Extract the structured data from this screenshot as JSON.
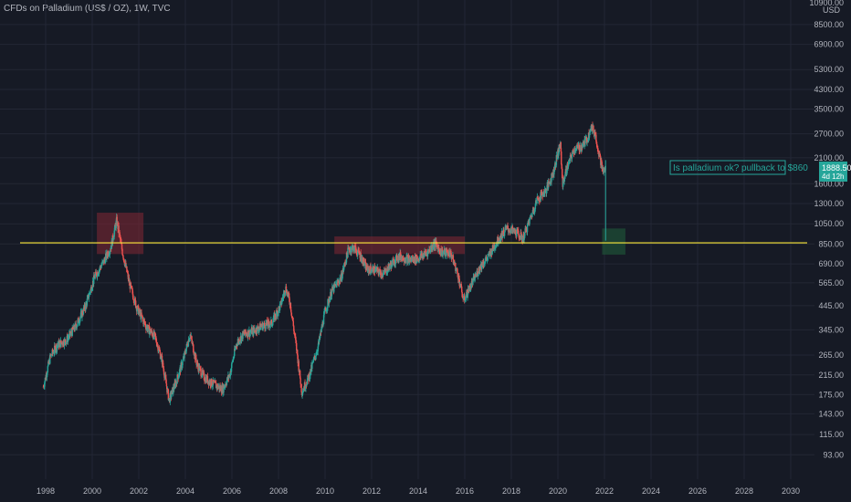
{
  "header": {
    "symbol_title": "CFDs on Palladium (US$ / OZ), 1W, TVC"
  },
  "price_scale": {
    "top_label": "10900.00",
    "unit": "USD"
  },
  "last_price": {
    "value": "1888.50",
    "countdown": "4d 12h",
    "color": "#26a69a"
  },
  "annotation": {
    "text": "Is palladium ok? pullback to $860",
    "color": "#26a69a"
  },
  "colors": {
    "background": "#161a25",
    "grid": "#232735",
    "up": "#26a69a",
    "down": "#ef5350",
    "support": "#ffeb3b",
    "zone_red": "#7a2733",
    "zone_green": "#1f5a3a"
  },
  "chart_data": {
    "type": "candlestick",
    "title": "CFDs on Palladium (US$ / OZ), 1W, TVC",
    "y_scale": "log",
    "ylim": [
      72,
      11000
    ],
    "xlim": [
      1997.2,
      2031.7
    ],
    "y_ticks": [
      "8500.00",
      "6900.00",
      "5300.00",
      "4300.00",
      "3500.00",
      "2700.00",
      "2100.00",
      "1600.00",
      "1300.00",
      "1050.00",
      "850.00",
      "690.00",
      "565.00",
      "445.00",
      "345.00",
      "265.00",
      "215.00",
      "175.00",
      "143.00",
      "115.00",
      "93.00"
    ],
    "x_ticks": [
      "1998",
      "2000",
      "2002",
      "2004",
      "2006",
      "2008",
      "2010",
      "2012",
      "2014",
      "2016",
      "2018",
      "2020",
      "2022",
      "2024",
      "2026",
      "2028",
      "2030"
    ],
    "grid": true,
    "support_level": 860,
    "zones": [
      {
        "x": [
          2000.2,
          2002.2
        ],
        "y": [
          765,
          1180
        ],
        "kind": "resistance"
      },
      {
        "x": [
          2010.4,
          2016.0
        ],
        "y": [
          765,
          920
        ],
        "kind": "resistance"
      },
      {
        "x": [
          2021.9,
          2022.9
        ],
        "y": [
          760,
          1000
        ],
        "kind": "target"
      }
    ],
    "price_path": [
      [
        1997.9,
        190
      ],
      [
        1998.2,
        260
      ],
      [
        1998.5,
        295
      ],
      [
        1998.9,
        310
      ],
      [
        1999.3,
        360
      ],
      [
        1999.7,
        440
      ],
      [
        2000.1,
        600
      ],
      [
        2000.5,
        710
      ],
      [
        2000.8,
        820
      ],
      [
        2001.05,
        1090
      ],
      [
        2001.3,
        780
      ],
      [
        2001.6,
        560
      ],
      [
        2001.9,
        440
      ],
      [
        2002.3,
        360
      ],
      [
        2002.7,
        320
      ],
      [
        2003.0,
        250
      ],
      [
        2003.3,
        165
      ],
      [
        2003.6,
        200
      ],
      [
        2003.9,
        250
      ],
      [
        2004.2,
        330
      ],
      [
        2004.5,
        240
      ],
      [
        2004.8,
        210
      ],
      [
        2005.2,
        195
      ],
      [
        2005.6,
        185
      ],
      [
        2005.9,
        215
      ],
      [
        2006.2,
        300
      ],
      [
        2006.5,
        330
      ],
      [
        2006.9,
        340
      ],
      [
        2007.3,
        360
      ],
      [
        2007.7,
        370
      ],
      [
        2008.1,
        450
      ],
      [
        2008.3,
        540
      ],
      [
        2008.5,
        460
      ],
      [
        2008.8,
        270
      ],
      [
        2009.0,
        180
      ],
      [
        2009.3,
        210
      ],
      [
        2009.7,
        290
      ],
      [
        2010.0,
        420
      ],
      [
        2010.3,
        520
      ],
      [
        2010.7,
        600
      ],
      [
        2011.0,
        800
      ],
      [
        2011.2,
        820
      ],
      [
        2011.5,
        760
      ],
      [
        2011.8,
        650
      ],
      [
        2012.1,
        650
      ],
      [
        2012.5,
        620
      ],
      [
        2012.9,
        700
      ],
      [
        2013.2,
        750
      ],
      [
        2013.6,
        720
      ],
      [
        2014.0,
        730
      ],
      [
        2014.4,
        780
      ],
      [
        2014.7,
        860
      ],
      [
        2015.0,
        780
      ],
      [
        2015.4,
        770
      ],
      [
        2015.7,
        620
      ],
      [
        2015.95,
        470
      ],
      [
        2016.3,
        560
      ],
      [
        2016.7,
        680
      ],
      [
        2017.0,
        740
      ],
      [
        2017.4,
        880
      ],
      [
        2017.8,
        1000
      ],
      [
        2018.2,
        960
      ],
      [
        2018.5,
        900
      ],
      [
        2018.8,
        1100
      ],
      [
        2019.1,
        1350
      ],
      [
        2019.5,
        1500
      ],
      [
        2019.8,
        1800
      ],
      [
        2020.1,
        2450
      ],
      [
        2020.2,
        1600
      ],
      [
        2020.4,
        1900
      ],
      [
        2020.7,
        2300
      ],
      [
        2021.0,
        2350
      ],
      [
        2021.3,
        2600
      ],
      [
        2021.4,
        2950
      ],
      [
        2021.6,
        2700
      ],
      [
        2021.8,
        2100
      ],
      [
        2021.95,
        1800
      ],
      [
        2022.05,
        1888.5
      ]
    ],
    "series": [
      {
        "name": "",
        "values_note_unused": ""
      }
    ]
  }
}
